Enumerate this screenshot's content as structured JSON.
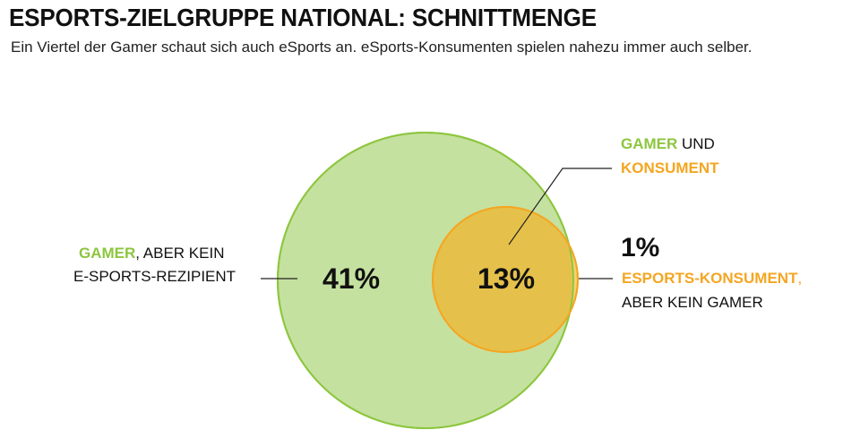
{
  "header": {
    "title": "ESPORTS-ZIELGRUPPE NATIONAL: SCHNITTMENGE",
    "subtitle": "Ein Viertel der Gamer schaut sich auch eSports an. eSports-Konsumenten spielen nahezu immer auch selber."
  },
  "colors": {
    "gamer_green": "#8dc63f",
    "gamer_fill": "#c5e1a0",
    "consumer_orange": "#f4a621",
    "overlap_fill": "#e8c24a",
    "text_dark": "#111111"
  },
  "chart_data": {
    "type": "venn",
    "sets": [
      {
        "name": "GAMER"
      },
      {
        "name": "ESPORTS-KONSUMENT"
      }
    ],
    "regions": [
      {
        "id": "gamer_only",
        "value": 41,
        "value_label": "41%",
        "label_parts": [
          {
            "text": "GAMER",
            "color": "green"
          },
          {
            "text": ", ABER KEIN",
            "color": "dark"
          }
        ],
        "label_line2": "E-SPORTS-REZIPIENT"
      },
      {
        "id": "overlap",
        "value": 13,
        "value_label": "13%",
        "label_parts": [
          {
            "text": "GAMER",
            "color": "green"
          },
          {
            "text": " UND",
            "color": "dark"
          }
        ],
        "label_line2": "KONSUMENT"
      },
      {
        "id": "consumer_only",
        "value": 1,
        "value_label": "1%",
        "label_parts": [
          {
            "text": "ESPORTS-KONSUMENT",
            "color": "orange"
          },
          {
            "text": ",",
            "color": "orange"
          }
        ],
        "label_line2": "ABER KEIN GAMER"
      }
    ]
  }
}
